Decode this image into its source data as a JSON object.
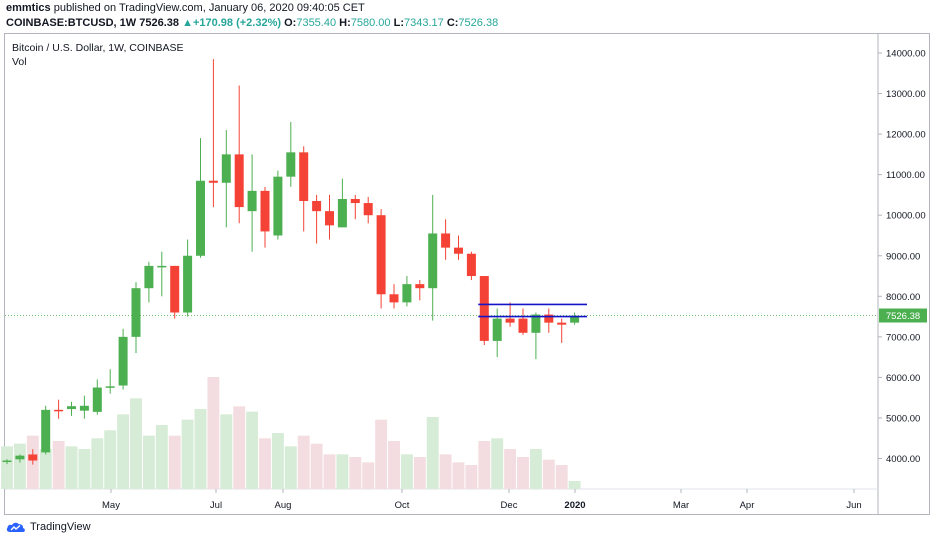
{
  "header": {
    "author": "emmtics",
    "published_text": "published on TradingView.com, January 06, 2020 09:40:05 CET",
    "symbol_line": "COINBASE:BTCUSD, 1W",
    "last": "7526.38",
    "change_arrow": "▲",
    "change": "+170.98 (+2.32%)",
    "o_label": "O:",
    "o_value": "7355.40",
    "h_label": "H:",
    "h_value": "7580.00",
    "l_label": "L:",
    "l_value": "7343.17",
    "c_label": "C:",
    "c_value": "7526.38"
  },
  "pane": {
    "title": "Bitcoin / U.S. Dollar, 1W, COINBASE",
    "volume_label": "Vol"
  },
  "footer": {
    "brand": "TradingView"
  },
  "colors": {
    "up": "#4caf50",
    "down": "#f44336",
    "up_vol": "#d6ecd7",
    "down_vol": "#f4dde0",
    "line": "#1515c8",
    "price_tag": "#4caf50"
  },
  "chart_data": {
    "type": "candlestick",
    "title": "Bitcoin / U.S. Dollar, 1W, COINBASE",
    "ylim": [
      3250,
      14500
    ],
    "y_ticks": [
      "4000.00",
      "5000.00",
      "6000.00",
      "7000.00",
      "8000.00",
      "9000.00",
      "10000.00",
      "11000.00",
      "12000.00",
      "13000.00",
      "14000.00"
    ],
    "x_ticks": [
      "May",
      "Jul",
      "Aug",
      "Oct",
      "Dec",
      "2020",
      "Mar",
      "Apr",
      "Jun"
    ],
    "last_price_label": "7526.38",
    "horizontal_lines": [
      7800,
      7500
    ],
    "candles": [
      {
        "o": 3920,
        "h": 3980,
        "l": 3860,
        "c": 3950,
        "v": 0.16
      },
      {
        "o": 3980,
        "h": 4100,
        "l": 3900,
        "c": 4070,
        "v": 0.17
      },
      {
        "o": 4100,
        "h": 4230,
        "l": 3850,
        "c": 3950,
        "v": 0.2
      },
      {
        "o": 4150,
        "h": 5300,
        "l": 4100,
        "c": 5200,
        "v": 0.15
      },
      {
        "o": 5200,
        "h": 5450,
        "l": 4980,
        "c": 5170,
        "v": 0.18
      },
      {
        "o": 5220,
        "h": 5400,
        "l": 5050,
        "c": 5290,
        "v": 0.16
      },
      {
        "o": 5180,
        "h": 5550,
        "l": 4980,
        "c": 5300,
        "v": 0.15
      },
      {
        "o": 5150,
        "h": 5950,
        "l": 5080,
        "c": 5750,
        "v": 0.19
      },
      {
        "o": 5750,
        "h": 6200,
        "l": 5600,
        "c": 5780,
        "v": 0.22
      },
      {
        "o": 5800,
        "h": 7200,
        "l": 5700,
        "c": 7000,
        "v": 0.28
      },
      {
        "o": 7000,
        "h": 8350,
        "l": 6600,
        "c": 8200,
        "v": 0.34
      },
      {
        "o": 8200,
        "h": 8850,
        "l": 7850,
        "c": 8750,
        "v": 0.2
      },
      {
        "o": 8720,
        "h": 9100,
        "l": 8000,
        "c": 8750,
        "v": 0.24
      },
      {
        "o": 8750,
        "h": 8750,
        "l": 7450,
        "c": 7600,
        "v": 0.2
      },
      {
        "o": 7600,
        "h": 9400,
        "l": 7500,
        "c": 9000,
        "v": 0.26
      },
      {
        "o": 9000,
        "h": 11900,
        "l": 8950,
        "c": 10850,
        "v": 0.3
      },
      {
        "o": 10850,
        "h": 13850,
        "l": 10200,
        "c": 10800,
        "v": 0.42
      },
      {
        "o": 10800,
        "h": 12100,
        "l": 9700,
        "c": 11500,
        "v": 0.28
      },
      {
        "o": 11500,
        "h": 13200,
        "l": 9800,
        "c": 10200,
        "v": 0.31
      },
      {
        "o": 10100,
        "h": 11500,
        "l": 9100,
        "c": 10600,
        "v": 0.29
      },
      {
        "o": 10600,
        "h": 10700,
        "l": 9200,
        "c": 9600,
        "v": 0.19
      },
      {
        "o": 9500,
        "h": 11100,
        "l": 9400,
        "c": 10950,
        "v": 0.21
      },
      {
        "o": 10950,
        "h": 12300,
        "l": 10700,
        "c": 11550,
        "v": 0.16
      },
      {
        "o": 11550,
        "h": 11700,
        "l": 9600,
        "c": 10350,
        "v": 0.2
      },
      {
        "o": 10350,
        "h": 10500,
        "l": 9300,
        "c": 10100,
        "v": 0.17
      },
      {
        "o": 10100,
        "h": 10500,
        "l": 9400,
        "c": 9750,
        "v": 0.13
      },
      {
        "o": 9700,
        "h": 10900,
        "l": 9700,
        "c": 10400,
        "v": 0.13
      },
      {
        "o": 10400,
        "h": 10500,
        "l": 9900,
        "c": 10300,
        "v": 0.12
      },
      {
        "o": 10300,
        "h": 10450,
        "l": 9800,
        "c": 10000,
        "v": 0.1
      },
      {
        "o": 10000,
        "h": 10150,
        "l": 7700,
        "c": 8050,
        "v": 0.26
      },
      {
        "o": 8050,
        "h": 8300,
        "l": 7700,
        "c": 7850,
        "v": 0.18
      },
      {
        "o": 7850,
        "h": 8500,
        "l": 7750,
        "c": 8300,
        "v": 0.13
      },
      {
        "o": 8300,
        "h": 8400,
        "l": 7900,
        "c": 8200,
        "v": 0.12
      },
      {
        "o": 8200,
        "h": 10500,
        "l": 7400,
        "c": 9550,
        "v": 0.27
      },
      {
        "o": 9550,
        "h": 9900,
        "l": 8900,
        "c": 9200,
        "v": 0.13
      },
      {
        "o": 9200,
        "h": 9500,
        "l": 8900,
        "c": 9050,
        "v": 0.1
      },
      {
        "o": 9050,
        "h": 9100,
        "l": 8400,
        "c": 8500,
        "v": 0.09
      },
      {
        "o": 8500,
        "h": 8500,
        "l": 6800,
        "c": 6900,
        "v": 0.18
      },
      {
        "o": 6900,
        "h": 7700,
        "l": 6500,
        "c": 7450,
        "v": 0.19
      },
      {
        "o": 7450,
        "h": 7850,
        "l": 7250,
        "c": 7350,
        "v": 0.15
      },
      {
        "o": 7450,
        "h": 7700,
        "l": 7050,
        "c": 7100,
        "v": 0.12
      },
      {
        "o": 7100,
        "h": 7600,
        "l": 6450,
        "c": 7550,
        "v": 0.15
      },
      {
        "o": 7550,
        "h": 7700,
        "l": 7100,
        "c": 7350,
        "v": 0.11
      },
      {
        "o": 7350,
        "h": 7450,
        "l": 6850,
        "c": 7300,
        "v": 0.09
      },
      {
        "o": 7350,
        "h": 7600,
        "l": 7300,
        "c": 7520,
        "v": 0.03
      }
    ]
  }
}
